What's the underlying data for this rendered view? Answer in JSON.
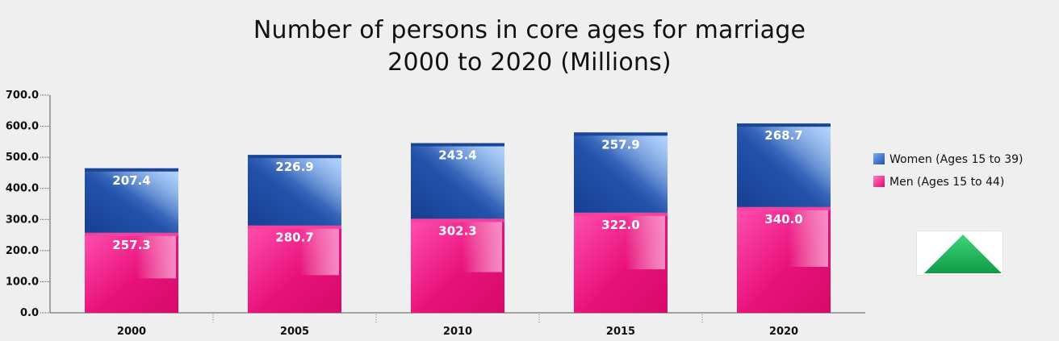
{
  "chart_data": {
    "type": "bar",
    "stacked": true,
    "title": [
      "Number of persons in core ages for marriage",
      "2000 to 2020 (Millions)"
    ],
    "categories": [
      "2000",
      "2005",
      "2010",
      "2015",
      "2020"
    ],
    "series": [
      {
        "name": "Men (Ages 15 to 44)",
        "values": [
          257.3,
          280.7,
          302.3,
          322.0,
          340.0
        ],
        "labels": [
          "257.3",
          "280.7",
          "302.3",
          "322.0",
          "340.0"
        ],
        "color": "#e8117a"
      },
      {
        "name": "Women (Ages 15 to 39)",
        "values": [
          207.4,
          226.9,
          243.4,
          257.9,
          268.7
        ],
        "labels": [
          "207.4",
          "226.9",
          "243.4",
          "257.9",
          "268.7"
        ],
        "color": "#2150a8"
      }
    ],
    "ylim": [
      0,
      700
    ],
    "yticks": [
      "0.0",
      "100.0",
      "200.0",
      "300.0",
      "400.0",
      "500.0",
      "600.0",
      "700.0"
    ],
    "legend": {
      "position": "right",
      "entries": [
        "Women (Ages 15 to 39)",
        "Men (Ages 15 to 44)"
      ]
    },
    "grid": false
  },
  "colors": {
    "nav_arrow": "#1fb85a",
    "background": "#efefef"
  },
  "nav_icon": "up-triangle-icon"
}
